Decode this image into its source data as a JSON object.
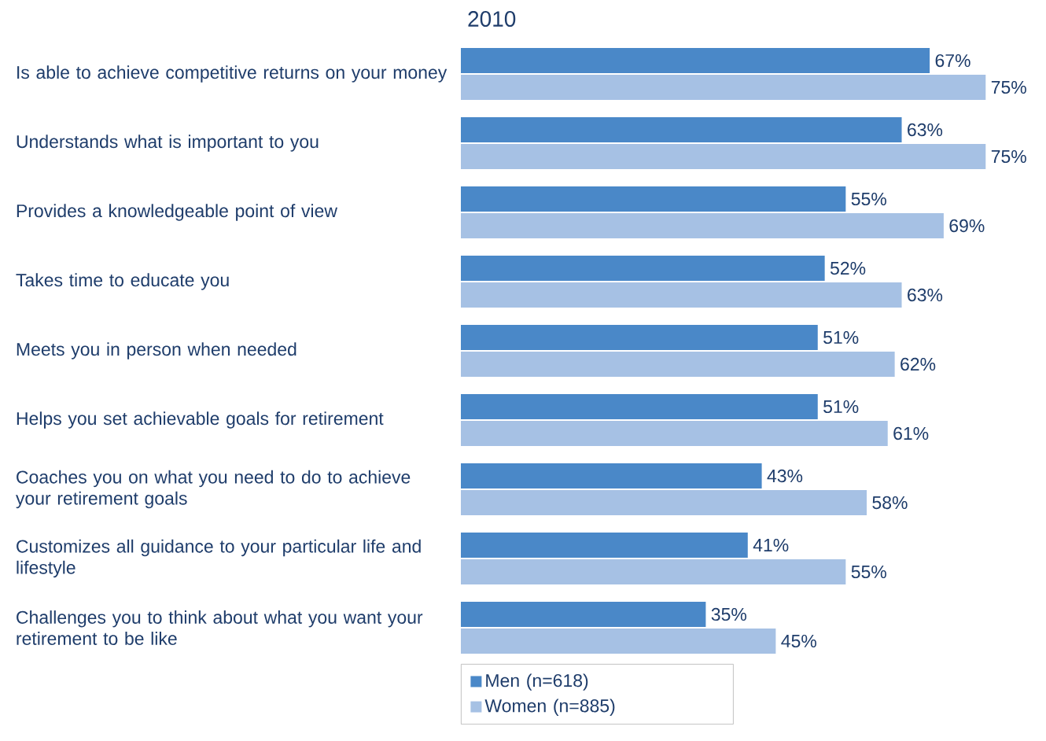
{
  "chart_data": {
    "type": "bar",
    "orientation": "horizontal",
    "title": "2010",
    "categories": [
      "Is able to achieve competitive returns on your money",
      "Understands what is important to you",
      "Provides a knowledgeable point of view",
      "Takes time to educate you",
      "Meets you in person when needed",
      "Helps you set achievable goals for retirement",
      "Coaches you on what you need to do to achieve your retirement goals",
      "Customizes all guidance to your particular life and lifestyle",
      "Challenges you to think about what you want your retirement to be like"
    ],
    "series": [
      {
        "name": "Men (n=618)",
        "color": "#4a88c8",
        "values": [
          67,
          63,
          55,
          52,
          51,
          51,
          43,
          41,
          35
        ],
        "value_labels": [
          "67%",
          "63%",
          "55%",
          "52%",
          "51%",
          "51%",
          "43%",
          "41%",
          "35%"
        ]
      },
      {
        "name": "Women (n=885)",
        "color": "#a6c1e4",
        "values": [
          75,
          75,
          69,
          63,
          62,
          61,
          58,
          55,
          45
        ],
        "value_labels": [
          "75%",
          "75%",
          "69%",
          "63%",
          "62%",
          "61%",
          "58%",
          "55%",
          "45%"
        ]
      }
    ],
    "legend": "bottom"
  }
}
